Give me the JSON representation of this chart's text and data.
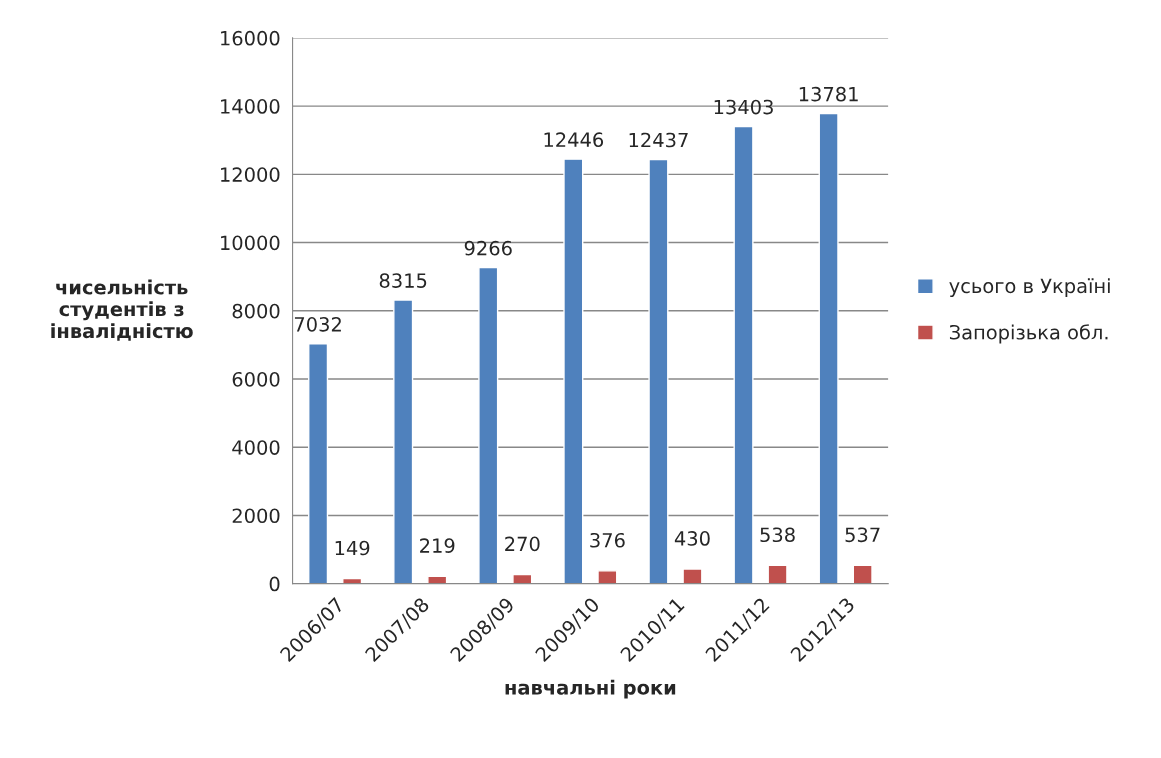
{
  "chart_data": {
    "type": "bar",
    "xlabel": "навчальні роки",
    "ylabel": "чисельність\nстудентів з\nінвалідністю",
    "categories": [
      "2006/07",
      "2007/08",
      "2008/09",
      "2009/10",
      "2010/11",
      "2011/12",
      "2012/13"
    ],
    "series": [
      {
        "name": "усього в Україні",
        "color": "#4f81bd",
        "values": [
          7032,
          8315,
          9266,
          12446,
          12437,
          13403,
          13781
        ]
      },
      {
        "name": "Запорізька обл.",
        "color": "#c0504d",
        "values": [
          149,
          219,
          270,
          376,
          430,
          538,
          537
        ]
      }
    ],
    "ylim": [
      0,
      16000
    ],
    "yticks": [
      0,
      2000,
      4000,
      6000,
      8000,
      10000,
      12000,
      14000,
      16000
    ],
    "grid": "y",
    "legend": "right",
    "data_labels": true
  }
}
